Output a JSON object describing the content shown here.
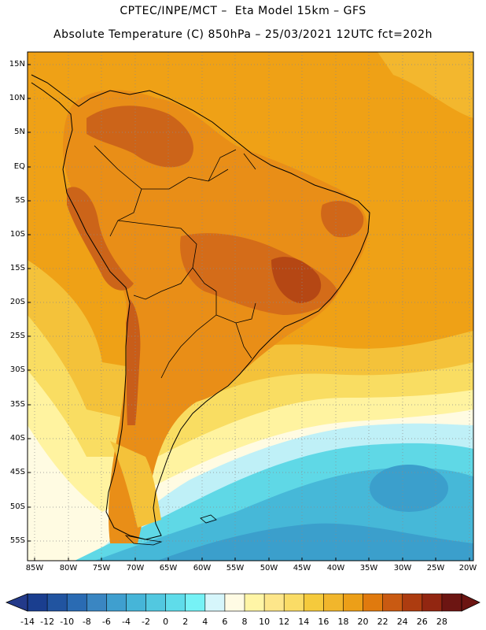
{
  "title_line1": "CPTEC/INPE/MCT –  Eta Model 15km – GFS",
  "title_line2": "Absolute Temperature (C) 850hPa – 25/03/2021 12UTC fct=202h",
  "latitudes": [
    "15N",
    "10N",
    "5N",
    "EQ",
    "5S",
    "10S",
    "15S",
    "20S",
    "25S",
    "30S",
    "35S",
    "40S",
    "45S",
    "50S",
    "55S"
  ],
  "longitudes": [
    "85W",
    "80W",
    "75W",
    "70W",
    "65W",
    "60W",
    "55W",
    "50W",
    "45W",
    "40W",
    "35W",
    "30W",
    "25W",
    "20W"
  ],
  "colorbar": {
    "labels": [
      "-14",
      "-12",
      "-10",
      "-8",
      "-6",
      "-4",
      "-2",
      "0",
      "2",
      "4",
      "6",
      "8",
      "10",
      "12",
      "14",
      "16",
      "18",
      "20",
      "22",
      "24",
      "26",
      "28"
    ],
    "colors": [
      "#1a3e8f",
      "#2154a0",
      "#2a6bb3",
      "#3a86c2",
      "#3f9fcf",
      "#46b5d8",
      "#52c8e0",
      "#5fdcea",
      "#76f2f6",
      "#d6f6fb",
      "#fffbe4",
      "#fff5a6",
      "#fde68a",
      "#fadc66",
      "#f5ca3c",
      "#f1b62c",
      "#ec9f18",
      "#e07a0e",
      "#c95a12",
      "#ad3c10",
      "#922611",
      "#6c1512"
    ]
  },
  "map_colors": {
    "ocean_warm": "#efa116",
    "ocean_mid": "#f6cf44",
    "ocean_cool": "#fff3a0",
    "land_hot": "#e07d18",
    "land_hotter": "#c8601a",
    "pale": "#fffbe2",
    "cold": "#5fd8e6",
    "colder": "#3fb2d3"
  }
}
